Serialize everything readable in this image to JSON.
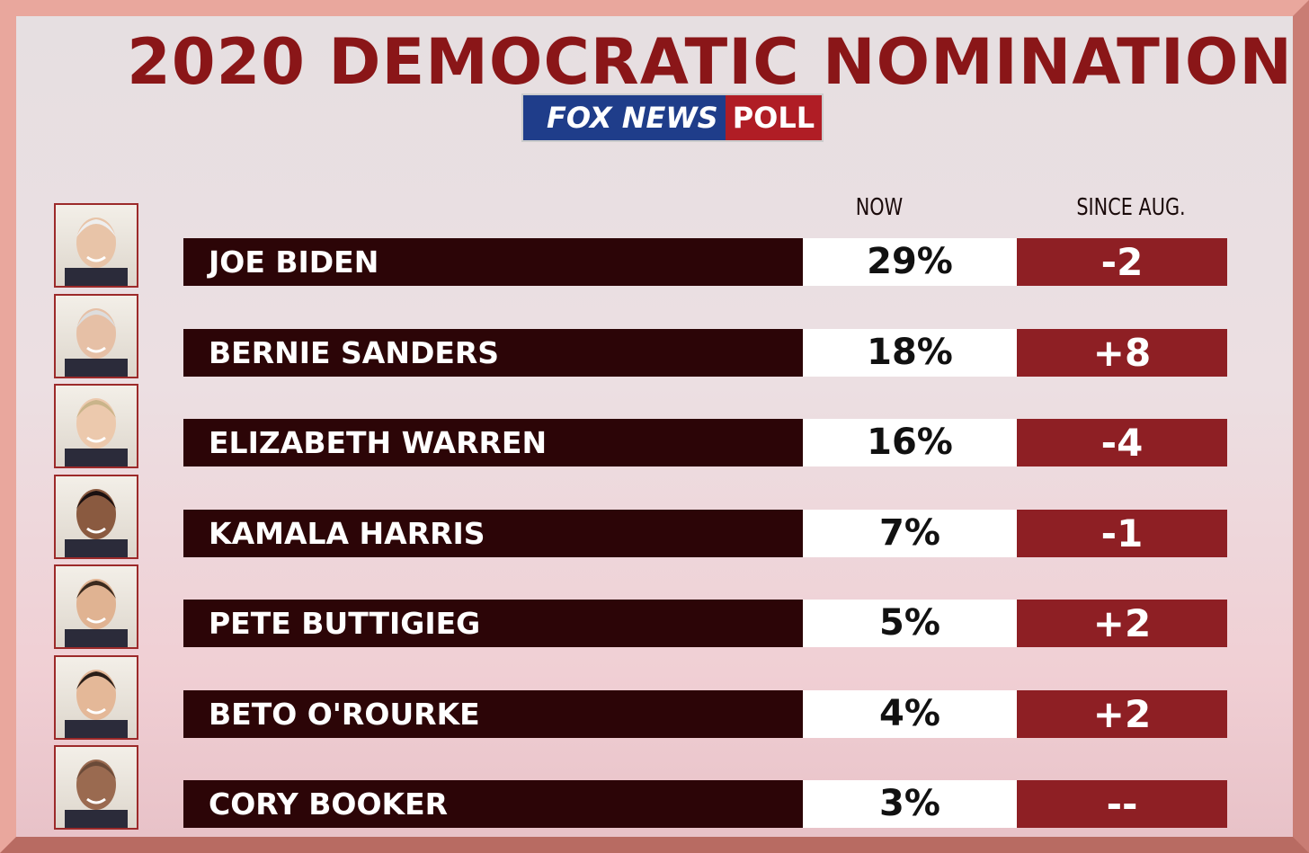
{
  "header": {
    "title": "2020 DEMOCRATIC NOMINATION",
    "logo": {
      "network": "FOX NEWS",
      "tag": "POLL"
    }
  },
  "table": {
    "columns": [
      "NOW",
      "SINCE AUG."
    ],
    "rows": [
      {
        "name": "JOE BIDEN",
        "now": "29%",
        "change": "-2"
      },
      {
        "name": "BERNIE SANDERS",
        "now": "18%",
        "change": "+8"
      },
      {
        "name": "ELIZABETH WARREN",
        "now": "16%",
        "change": "-4"
      },
      {
        "name": "KAMALA HARRIS",
        "now": "7%",
        "change": "-1"
      },
      {
        "name": "PETE BUTTIGIEG",
        "now": "5%",
        "change": "+2"
      },
      {
        "name": "BETO O'ROURKE",
        "now": "4%",
        "change": "+2"
      },
      {
        "name": "CORY BOOKER",
        "now": "3%",
        "change": "--"
      }
    ]
  }
}
